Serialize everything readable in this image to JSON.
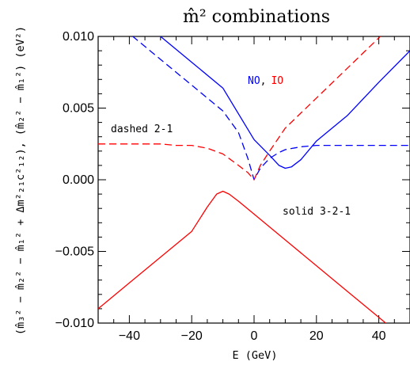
{
  "chart_data": {
    "type": "line",
    "title": "m̂² combinations",
    "xlabel": "E (GeV)",
    "ylabel": "(m̂₃² − m̂₂² − m̂₁² + Δm²₂₁c²₁₂), (m̂₂² − m̂₁²) (eV²)",
    "xlim": [
      -50,
      50
    ],
    "ylim": [
      -0.01,
      0.01
    ],
    "x_ticks": [
      -40,
      -20,
      0,
      20,
      40
    ],
    "x_tick_labels": [
      "−40",
      "−20",
      "0",
      "20",
      "40"
    ],
    "y_ticks": [
      -0.01,
      -0.005,
      0,
      0.005,
      0.01
    ],
    "y_tick_labels": [
      "−0.010",
      "−0.005",
      "0.000",
      "0.005",
      "0.010"
    ],
    "legend": {
      "no_label": "NO",
      "separator": ",",
      "io_label": "IO",
      "dashed_label": "dashed 2-1",
      "solid_label": "solid 3-2-1"
    },
    "colors": {
      "NO": "#0000ff",
      "IO": "#ff0000"
    },
    "series": [
      {
        "name": "NO",
        "style": "solid",
        "x": [
          -50,
          -40,
          -30,
          -20,
          -10,
          0,
          5,
          8,
          10,
          12,
          15,
          20,
          30,
          40,
          50
        ],
        "y": [
          0.0136,
          0.0118,
          0.01,
          0.0082,
          0.0064,
          0.0028,
          0.0017,
          0.001,
          0.0008,
          0.0009,
          0.0014,
          0.0027,
          0.0045,
          0.0068,
          0.009
        ]
      },
      {
        "name": "IO",
        "style": "solid",
        "x": [
          -50,
          -40,
          -30,
          -20,
          -15,
          -12,
          -10,
          -8,
          -5,
          0,
          10,
          20,
          30,
          40,
          50
        ],
        "y": [
          -0.009,
          -0.0072,
          -0.0054,
          -0.0036,
          -0.0019,
          -0.001,
          -0.0008,
          -0.001,
          -0.0015,
          -0.0024,
          -0.0042,
          -0.006,
          -0.0078,
          -0.0096,
          -0.0114
        ]
      },
      {
        "name": "NO",
        "style": "dashed",
        "x": [
          -50,
          -40,
          -30,
          -20,
          -10,
          -5,
          -2,
          0,
          2,
          5,
          8,
          10,
          15,
          20,
          30,
          40,
          50
        ],
        "y": [
          0.012,
          0.0102,
          0.0084,
          0.0066,
          0.0048,
          0.0033,
          0.0015,
          0.0,
          0.0008,
          0.0015,
          0.0019,
          0.0021,
          0.0023,
          0.0024,
          0.0024,
          0.0024,
          0.0024
        ]
      },
      {
        "name": "IO",
        "style": "dashed",
        "x": [
          -50,
          -40,
          -30,
          -25,
          -20,
          -15,
          -10,
          -5,
          -2,
          0,
          2,
          5,
          10,
          20,
          30,
          40,
          50
        ],
        "y": [
          0.0025,
          0.0025,
          0.0025,
          0.0024,
          0.0024,
          0.0022,
          0.0018,
          0.001,
          0.0005,
          0.0,
          0.001,
          0.002,
          0.0036,
          0.0057,
          0.0078,
          0.0099,
          0.012
        ]
      }
    ]
  }
}
